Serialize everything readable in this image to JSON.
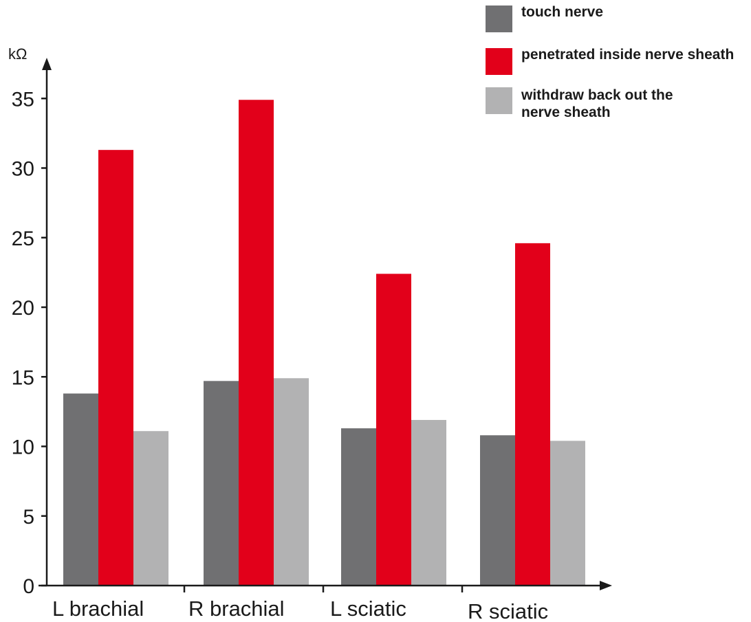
{
  "chart_data": {
    "type": "bar",
    "ylabel": "kΩ",
    "ylim": [
      0,
      37
    ],
    "yticks": [
      0,
      5,
      10,
      15,
      20,
      25,
      30,
      35
    ],
    "categories": [
      "L brachial",
      "R brachial",
      "L sciatic",
      "R sciatic"
    ],
    "series": [
      {
        "name": "touch nerve",
        "color": "#707072",
        "values": [
          13.8,
          14.7,
          11.3,
          10.8
        ]
      },
      {
        "name": "penetrated inside nerve sheath",
        "color": "#e2001a",
        "values": [
          31.3,
          34.9,
          22.4,
          24.6
        ]
      },
      {
        "name": "withdraw back out the nerve sheath",
        "color": "#b2b2b3",
        "values": [
          11.1,
          14.9,
          11.9,
          10.4
        ]
      }
    ],
    "legend": {
      "position": "top-right",
      "labels": [
        [
          "touch nerve"
        ],
        [
          "penetrated inside nerve sheath"
        ],
        [
          "withdraw back out the",
          "nerve sheath"
        ]
      ]
    },
    "grid": false
  }
}
